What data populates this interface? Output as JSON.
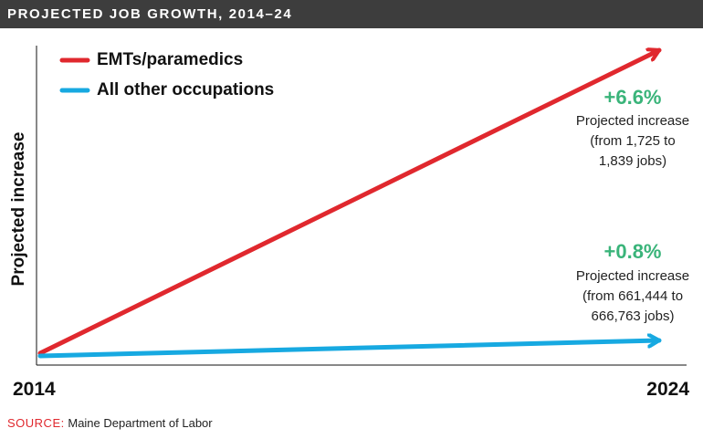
{
  "header": {
    "title": "PROJECTED JOB GROWTH, 2014–24"
  },
  "colors": {
    "emt": "#e0282e",
    "other": "#17a9e1",
    "increase": "#3ab47a",
    "bar": "#3d3d3d"
  },
  "chart_data": {
    "type": "line",
    "ylabel": "Projected increase",
    "x_ticks": [
      "2014",
      "2024"
    ],
    "legend": {
      "placement": "top-left",
      "entries": [
        "EMTs/paramedics",
        "All other occupations"
      ]
    },
    "series": [
      {
        "name": "EMTs/paramedics",
        "x": [
          2014,
          2024
        ],
        "y": [
          0,
          6.6
        ],
        "pct_label": "+6.6%",
        "note": [
          "Projected increase",
          "(from 1,725 to",
          "1,839 jobs)"
        ]
      },
      {
        "name": "All other occupations",
        "x": [
          2014,
          2024
        ],
        "y": [
          0,
          0.8
        ],
        "pct_label": "+0.8%",
        "note": [
          "Projected increase",
          "(from 661,444 to",
          "666,763 jobs)"
        ]
      }
    ],
    "grid": false
  },
  "source": {
    "label": "SOURCE:",
    "text": "Maine Department of Labor"
  }
}
